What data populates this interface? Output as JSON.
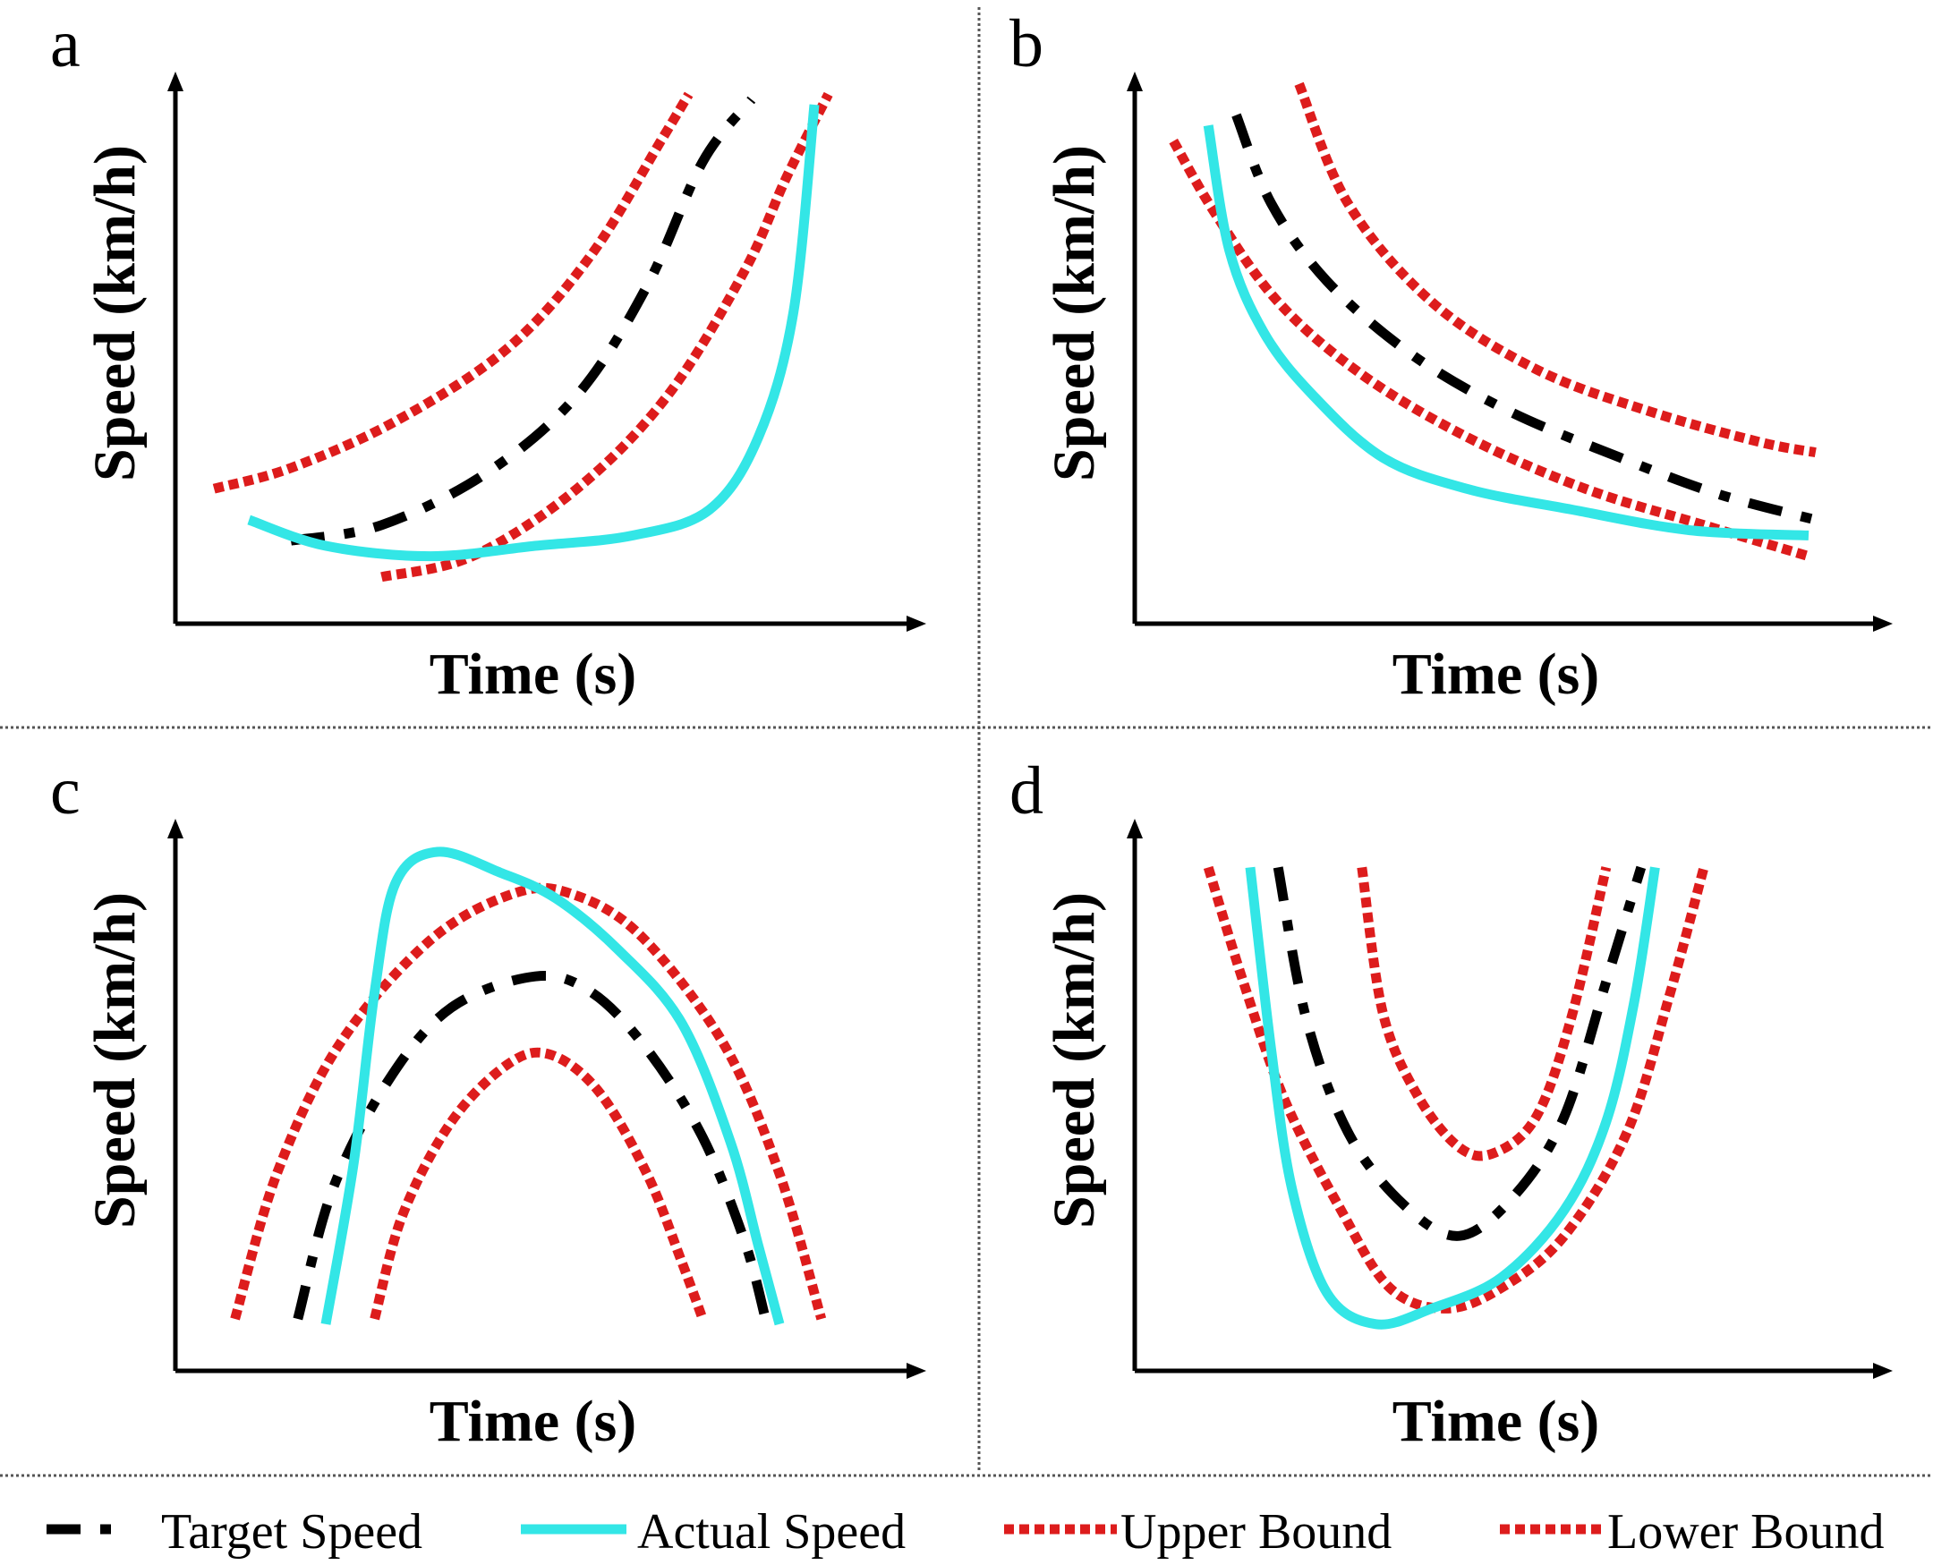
{
  "chart_data": [
    {
      "type": "line",
      "panel": "a",
      "xlabel": "Time (s)",
      "ylabel": "Speed (km/h)",
      "xlim": [
        0,
        10
      ],
      "ylim": [
        0,
        10
      ],
      "series": [
        {
          "name": "Upper Bound",
          "points": [
            [
              0.4,
              2.6
            ],
            [
              1.5,
              3.0
            ],
            [
              3,
              3.9
            ],
            [
              4.6,
              5.3
            ],
            [
              5.8,
              7.1
            ],
            [
              6.8,
              9.3
            ],
            [
              7.2,
              10.2
            ]
          ]
        },
        {
          "name": "Target Speed",
          "points": [
            [
              1.5,
              1.6
            ],
            [
              2.8,
              1.9
            ],
            [
              4.3,
              2.9
            ],
            [
              5.6,
              4.4
            ],
            [
              6.6,
              6.5
            ],
            [
              7.4,
              8.9
            ],
            [
              8.1,
              10.1
            ]
          ]
        },
        {
          "name": "Lower Bound",
          "points": [
            [
              2.8,
              0.9
            ],
            [
              4.1,
              1.3
            ],
            [
              5.6,
              2.6
            ],
            [
              6.9,
              4.4
            ],
            [
              8.0,
              6.8
            ],
            [
              8.6,
              8.6
            ],
            [
              9.2,
              10.2
            ]
          ]
        },
        {
          "name": "Actual Speed",
          "points": [
            [
              0.9,
              2.0
            ],
            [
              2.0,
              1.5
            ],
            [
              3.5,
              1.3
            ],
            [
              5.0,
              1.5
            ],
            [
              6.4,
              1.7
            ],
            [
              7.5,
              2.2
            ],
            [
              8.2,
              3.6
            ],
            [
              8.7,
              6.0
            ],
            [
              9.0,
              10.0
            ]
          ]
        }
      ]
    },
    {
      "type": "line",
      "panel": "b",
      "xlabel": "Time (s)",
      "ylabel": "Speed (km/h)",
      "xlim": [
        0,
        10
      ],
      "ylim": [
        0,
        10
      ],
      "series": [
        {
          "name": "Upper Bound",
          "points": [
            [
              2.2,
              10.4
            ],
            [
              2.9,
              8.1
            ],
            [
              4.1,
              6.2
            ],
            [
              5.6,
              4.9
            ],
            [
              7.2,
              4.1
            ],
            [
              8.8,
              3.5
            ],
            [
              9.6,
              3.3
            ]
          ]
        },
        {
          "name": "Target Speed",
          "points": [
            [
              1.3,
              9.8
            ],
            [
              1.8,
              8.1
            ],
            [
              2.6,
              6.6
            ],
            [
              3.8,
              5.2
            ],
            [
              5.2,
              4.1
            ],
            [
              6.8,
              3.2
            ],
            [
              8.2,
              2.5
            ],
            [
              9.6,
              2.0
            ]
          ]
        },
        {
          "name": "Lower Bound",
          "points": [
            [
              0.4,
              9.3
            ],
            [
              1.0,
              7.9
            ],
            [
              1.9,
              6.2
            ],
            [
              3.1,
              4.8
            ],
            [
              4.6,
              3.6
            ],
            [
              6.3,
              2.6
            ],
            [
              8.0,
              1.9
            ],
            [
              9.5,
              1.3
            ]
          ]
        },
        {
          "name": "Actual Speed",
          "points": [
            [
              0.9,
              9.6
            ],
            [
              1.2,
              7.2
            ],
            [
              1.7,
              5.6
            ],
            [
              2.4,
              4.4
            ],
            [
              3.4,
              3.2
            ],
            [
              4.6,
              2.6
            ],
            [
              6.1,
              2.2
            ],
            [
              7.8,
              1.8
            ],
            [
              9.5,
              1.7
            ]
          ]
        }
      ]
    },
    {
      "type": "line",
      "panel": "c",
      "xlabel": "Time (s)",
      "ylabel": "Speed (km/h)",
      "xlim": [
        0,
        10
      ],
      "ylim": [
        0,
        10
      ],
      "series": [
        {
          "name": "Upper Bound",
          "points": [
            [
              0.7,
              1.0
            ],
            [
              1.3,
              3.8
            ],
            [
              2.2,
              6.3
            ],
            [
              3.5,
              8.3
            ],
            [
              4.7,
              9.2
            ],
            [
              5.5,
              9.2
            ],
            [
              6.5,
              8.4
            ],
            [
              7.7,
              6.3
            ],
            [
              8.5,
              3.8
            ],
            [
              9.1,
              1.0
            ]
          ]
        },
        {
          "name": "Target Speed",
          "points": [
            [
              1.6,
              1.0
            ],
            [
              2.1,
              3.5
            ],
            [
              2.9,
              5.6
            ],
            [
              3.8,
              7.0
            ],
            [
              5.0,
              7.6
            ],
            [
              5.8,
              7.3
            ],
            [
              6.6,
              6.2
            ],
            [
              7.4,
              4.5
            ],
            [
              8.0,
              2.5
            ],
            [
              8.3,
              1.0
            ]
          ]
        },
        {
          "name": "Lower Bound",
          "points": [
            [
              2.7,
              1.0
            ],
            [
              3.1,
              3.0
            ],
            [
              3.8,
              4.8
            ],
            [
              4.6,
              5.9
            ],
            [
              5.2,
              6.1
            ],
            [
              5.9,
              5.4
            ],
            [
              6.6,
              3.8
            ],
            [
              7.1,
              2.1
            ],
            [
              7.4,
              1.0
            ]
          ]
        },
        {
          "name": "Actual Speed",
          "points": [
            [
              2.0,
              0.9
            ],
            [
              2.4,
              4.0
            ],
            [
              2.7,
              7.3
            ],
            [
              3.0,
              9.4
            ],
            [
              3.6,
              10.0
            ],
            [
              4.5,
              9.6
            ],
            [
              5.3,
              9.1
            ],
            [
              6.2,
              8.1
            ],
            [
              7.1,
              6.7
            ],
            [
              7.8,
              4.4
            ],
            [
              8.2,
              2.4
            ],
            [
              8.5,
              0.9
            ]
          ]
        }
      ]
    },
    {
      "type": "line",
      "panel": "d",
      "xlabel": "Time (s)",
      "ylabel": "Speed (km/h)",
      "xlim": [
        0,
        10
      ],
      "ylim": [
        0,
        10
      ],
      "series": [
        {
          "name": "Upper Bound",
          "points": [
            [
              3.1,
              9.7
            ],
            [
              3.4,
              6.9
            ],
            [
              3.9,
              5.3
            ],
            [
              4.5,
              4.3
            ],
            [
              5.0,
              4.2
            ],
            [
              5.6,
              4.9
            ],
            [
              6.1,
              6.8
            ],
            [
              6.6,
              9.7
            ]
          ]
        },
        {
          "name": "Target Speed",
          "points": [
            [
              1.9,
              9.7
            ],
            [
              2.3,
              6.8
            ],
            [
              2.9,
              4.6
            ],
            [
              3.7,
              3.2
            ],
            [
              4.5,
              2.6
            ],
            [
              5.3,
              3.4
            ],
            [
              6.0,
              4.9
            ],
            [
              6.6,
              7.5
            ],
            [
              7.1,
              9.7
            ]
          ]
        },
        {
          "name": "Lower Bound",
          "points": [
            [
              0.9,
              9.7
            ],
            [
              1.4,
              7.5
            ],
            [
              2.0,
              5.2
            ],
            [
              2.8,
              3.1
            ],
            [
              3.5,
              1.6
            ],
            [
              4.3,
              1.2
            ],
            [
              5.1,
              1.6
            ],
            [
              6.0,
              2.6
            ],
            [
              6.9,
              4.6
            ],
            [
              7.5,
              7.2
            ],
            [
              8.0,
              9.7
            ]
          ]
        },
        {
          "name": "Actual Speed",
          "points": [
            [
              1.5,
              9.7
            ],
            [
              1.8,
              6.2
            ],
            [
              2.1,
              3.5
            ],
            [
              2.6,
              1.5
            ],
            [
              3.3,
              0.9
            ],
            [
              4.1,
              1.2
            ],
            [
              5.1,
              1.8
            ],
            [
              6.0,
              3.1
            ],
            [
              6.6,
              4.8
            ],
            [
              7.0,
              7.1
            ],
            [
              7.3,
              9.7
            ]
          ]
        }
      ]
    }
  ],
  "legend": {
    "items": [
      {
        "label": "Target Speed",
        "style": "dash-dot",
        "color": "#000000"
      },
      {
        "label": "Actual Speed",
        "style": "solid",
        "color": "#33e6e6"
      },
      {
        "label": "Upper Bound",
        "style": "dotted",
        "color": "#dd1c1c"
      },
      {
        "label": "Lower Bound",
        "style": "dotted",
        "color": "#dd1c1c"
      }
    ]
  },
  "colors": {
    "target": "#000000",
    "actual": "#33e6e6",
    "bound": "#dd1c1c",
    "axis": "#000000",
    "separator": "#555555"
  }
}
